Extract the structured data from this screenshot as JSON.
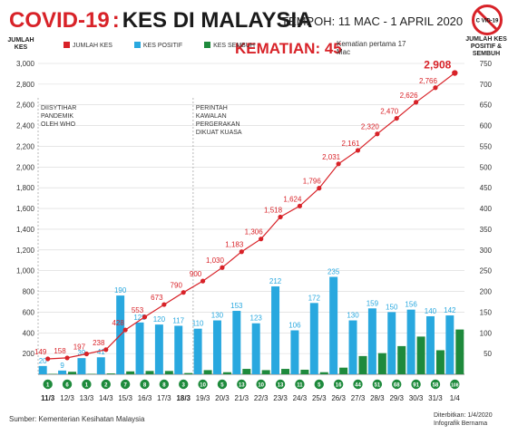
{
  "header": {
    "title_left": "COVID-19",
    "title_sep": ":",
    "title_right": "KES DI MALAYSIA",
    "period": "TEMPOH: 11 MAC - 1 APRIL 2020",
    "deaths": "KEMATIAN: 45",
    "deaths_note": "Kematian pertama 17 Mac",
    "icon_label": "C VID-19",
    "icon_name": "no-virus-icon"
  },
  "axes": {
    "left_title": "JUMLAH KES",
    "right_title": "JUMLAH KES POSITIF & SEMBUH"
  },
  "legend": {
    "total": "JUMLAH KES",
    "positive": "KES POSITIF",
    "recovered": "KES SEMBUH"
  },
  "footer": {
    "source": "Sumber: Kementerian Kesihatan Malaysia",
    "date": "Diterbitkan: 1/4/2020",
    "credit": "Infografik Bernama"
  },
  "colors": {
    "red": "#d82228",
    "blue": "#29a8df",
    "green": "#1e8a3c"
  },
  "chart_data": {
    "type": "bar",
    "categories": [
      "11/3",
      "12/3",
      "13/3",
      "14/3",
      "15/3",
      "16/3",
      "17/3",
      "18/3",
      "19/3",
      "20/3",
      "21/3",
      "22/3",
      "23/3",
      "24/3",
      "25/3",
      "26/3",
      "27/3",
      "28/3",
      "29/3",
      "30/3",
      "31/3",
      "1/4"
    ],
    "bold_categories": [
      "11/3",
      "18/3"
    ],
    "series": [
      {
        "name": "JUMLAH KES",
        "type": "line",
        "axis": "left",
        "color": "#d82228",
        "values": [
          149,
          158,
          197,
          238,
          428,
          553,
          673,
          790,
          900,
          1030,
          1183,
          1306,
          1518,
          1624,
          1796,
          2031,
          2161,
          2320,
          2470,
          2626,
          2766,
          2908
        ]
      },
      {
        "name": "KES POSITIF",
        "type": "bar",
        "axis": "right",
        "color": "#29a8df",
        "values": [
          20,
          9,
          39,
          41,
          190,
          125,
          120,
          117,
          110,
          130,
          153,
          123,
          212,
          106,
          172,
          235,
          130,
          159,
          150,
          156,
          140,
          142
        ]
      },
      {
        "name": "KES SEMBUH",
        "type": "bar",
        "axis": "right",
        "color": "#1e8a3c",
        "values": [
          1,
          6,
          1,
          2,
          7,
          8,
          8,
          3,
          10,
          5,
          13,
          10,
          13,
          11,
          5,
          16,
          44,
          51,
          68,
          91,
          58,
          108
        ]
      }
    ],
    "left_ylim": [
      0,
      3000
    ],
    "left_ticks": [
      200,
      400,
      600,
      800,
      1000,
      1200,
      1400,
      1600,
      1800,
      2000,
      2200,
      2400,
      2600,
      2800,
      3000
    ],
    "right_ylim": [
      0,
      750
    ],
    "right_ticks": [
      50,
      100,
      150,
      200,
      250,
      300,
      350,
      400,
      450,
      500,
      550,
      600,
      650,
      700,
      750
    ],
    "annotations": [
      {
        "at": "14/3",
        "text": "DIISYTIHAR PANDEMIK OLEH WHO"
      },
      {
        "at": "18/3",
        "text": "PERINTAH KAWALAN PERGERAKAN DIKUAT KUASA"
      }
    ],
    "highlight_last": "2,908"
  }
}
